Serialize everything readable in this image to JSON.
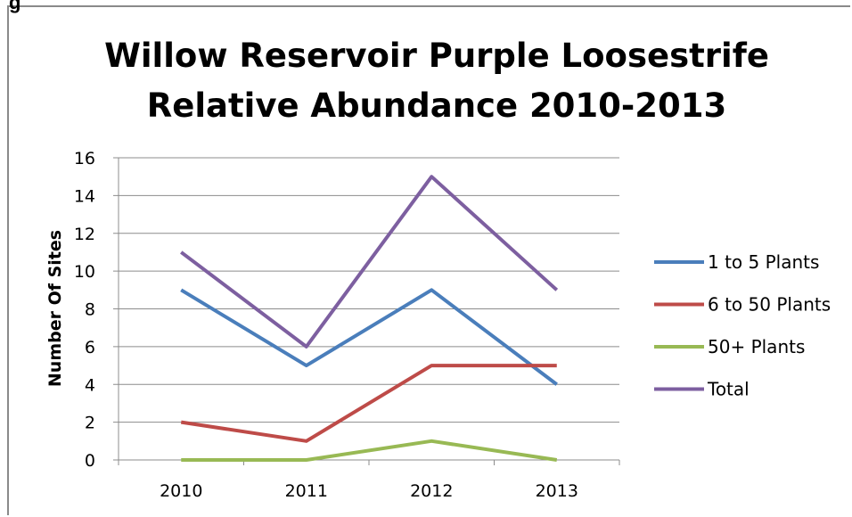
{
  "corner_text": "g",
  "chart_data": {
    "type": "line",
    "title_lines": [
      "Willow Reservoir Purple Loosestrife",
      "Relative Abundance 2010-2013"
    ],
    "ylabel": "Number Of Sites",
    "xlabel": "",
    "categories": [
      "2010",
      "2011",
      "2012",
      "2013"
    ],
    "ylim": [
      0,
      16
    ],
    "yticks": [
      0,
      2,
      4,
      6,
      8,
      10,
      12,
      14,
      16
    ],
    "grid": true,
    "legend_position": "right",
    "series": [
      {
        "name": "1 to 5 Plants",
        "values": [
          9,
          5,
          9,
          4
        ],
        "color": "#4a7ebb"
      },
      {
        "name": "6 to 50 Plants",
        "values": [
          2,
          1,
          5,
          5
        ],
        "color": "#be4b48"
      },
      {
        "name": "50+ Plants",
        "values": [
          0,
          0,
          1,
          0
        ],
        "color": "#98b954"
      },
      {
        "name": "Total",
        "values": [
          11,
          6,
          15,
          9
        ],
        "color": "#7d5fa0"
      }
    ]
  }
}
